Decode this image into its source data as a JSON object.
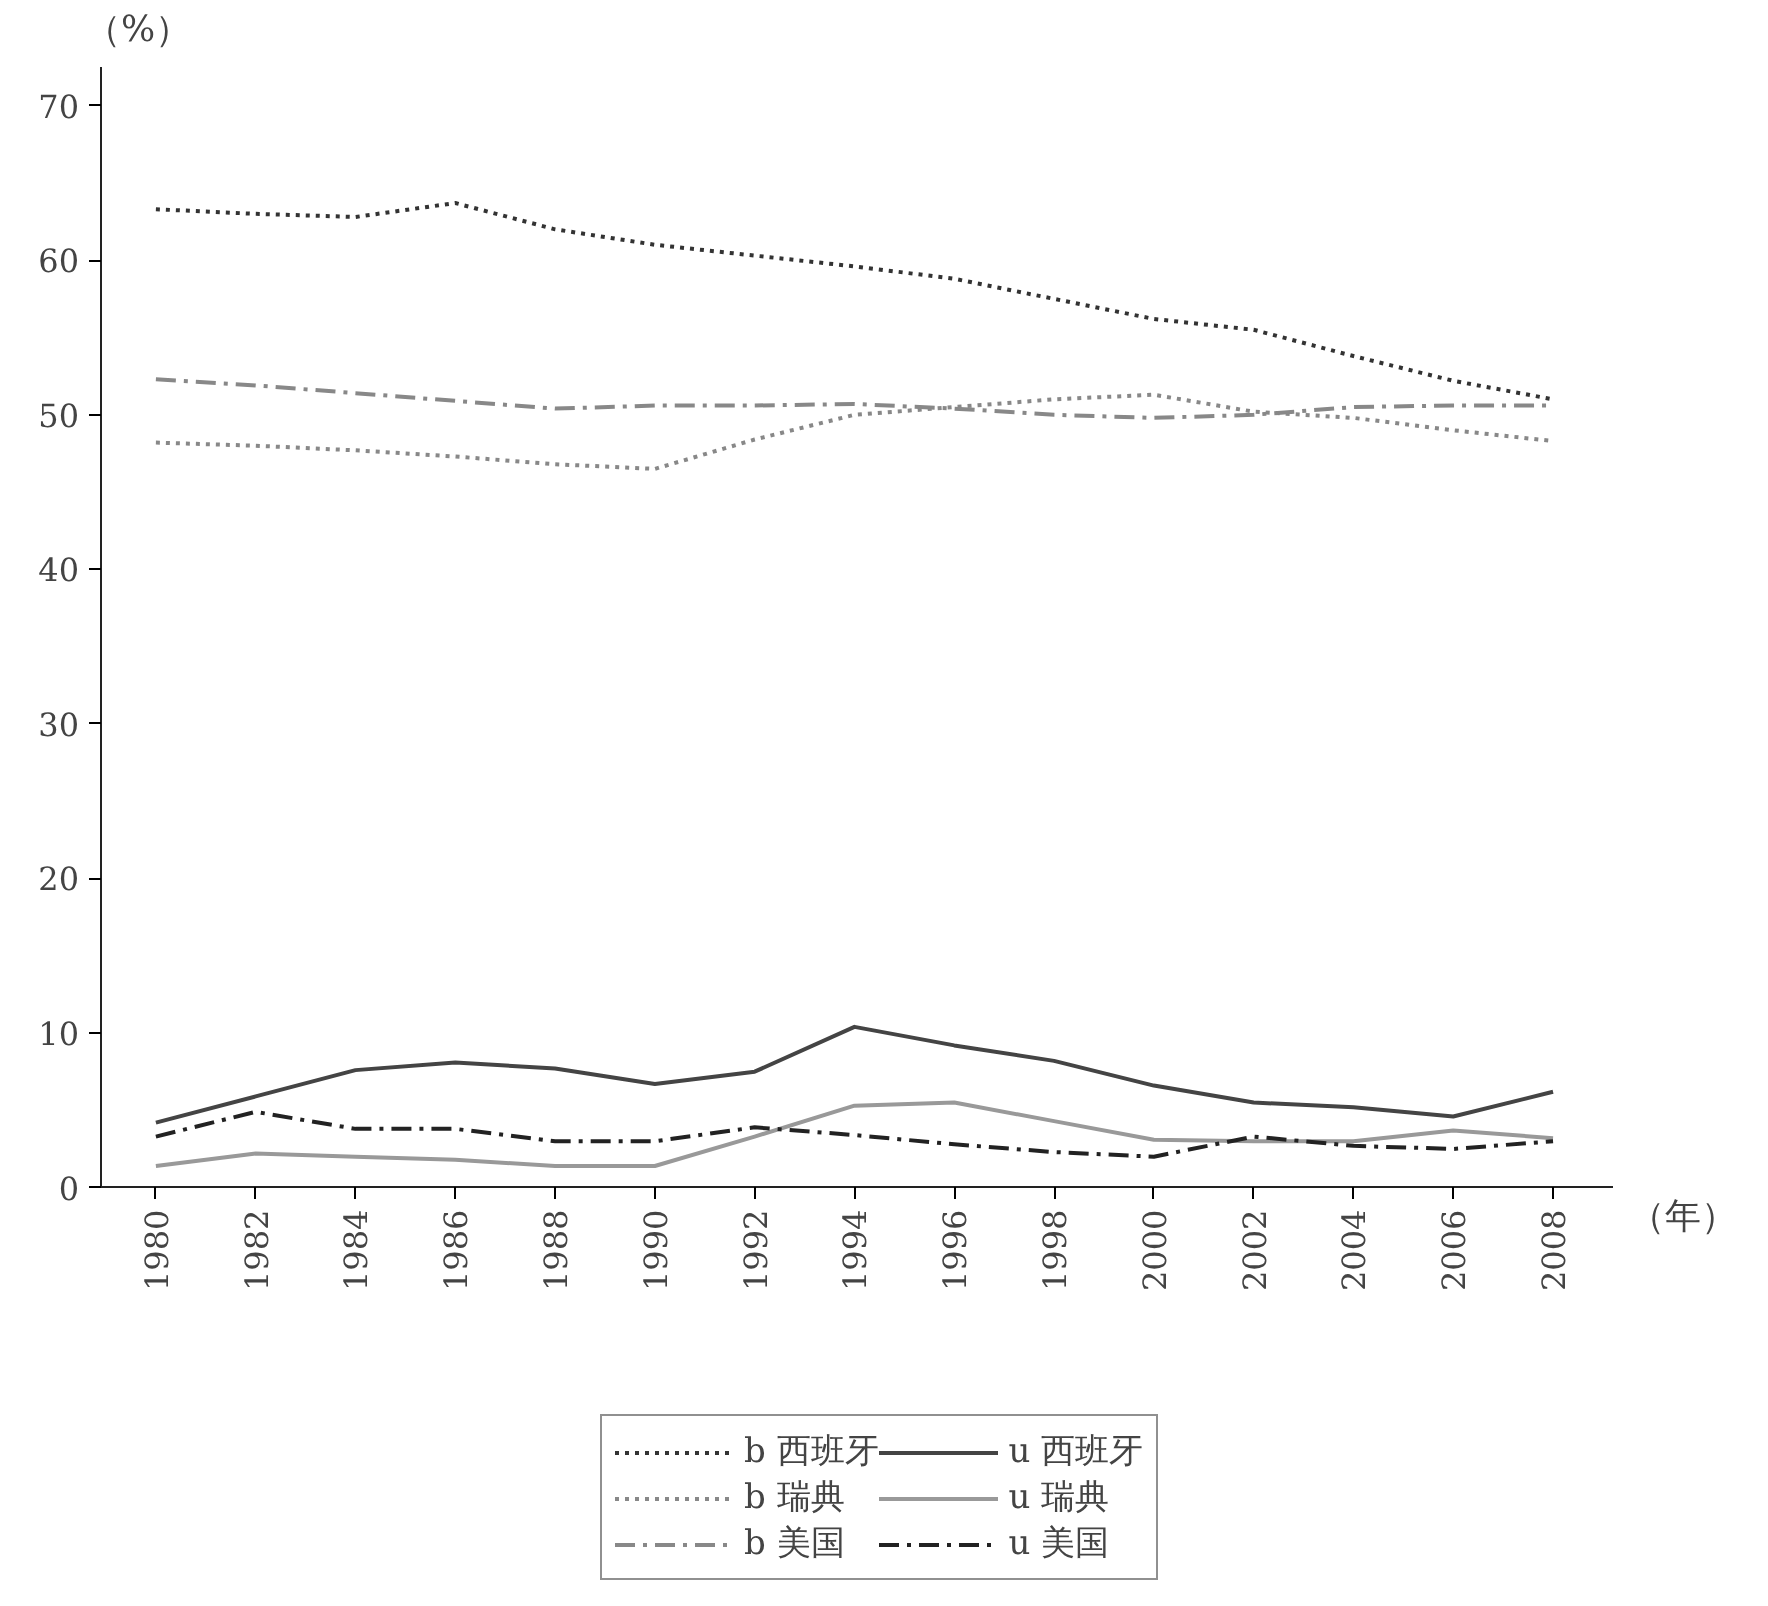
{
  "chart_data": {
    "type": "line",
    "xlabel": "（年）",
    "ylabel": "（%）",
    "x": [
      1980,
      1982,
      1984,
      1986,
      1988,
      1990,
      1992,
      1994,
      1996,
      1998,
      2000,
      2002,
      2004,
      2006,
      2008
    ],
    "xlim": [
      1978.9,
      2009.2
    ],
    "xticks": [
      1980,
      1982,
      1984,
      1986,
      1988,
      1990,
      1992,
      1994,
      1996,
      1998,
      2000,
      2002,
      2004,
      2006,
      2008
    ],
    "ylim": [
      0,
      72.5
    ],
    "yticks": [
      0,
      10,
      20,
      30,
      40,
      50,
      60,
      70
    ],
    "grid": false,
    "legend": "bottom",
    "marker": "none",
    "series": [
      {
        "name": "b 西班牙",
        "color": "#333333",
        "line_style": "dotted",
        "values": [
          63.3,
          63.0,
          62.8,
          63.7,
          62.0,
          61.0,
          60.3,
          59.6,
          58.8,
          57.5,
          56.2,
          55.5,
          53.8,
          52.2,
          51.0
        ]
      },
      {
        "name": "b 瑞典",
        "color": "#888888",
        "line_style": "dotted",
        "values": [
          48.2,
          48.0,
          47.7,
          47.3,
          46.8,
          46.5,
          48.4,
          50.0,
          50.5,
          51.0,
          51.3,
          50.2,
          49.8,
          49.0,
          48.3
        ]
      },
      {
        "name": "b 美国",
        "color": "#888888",
        "line_style": "dashdot",
        "values": [
          52.3,
          51.9,
          51.4,
          50.9,
          50.4,
          50.6,
          50.6,
          50.7,
          50.4,
          50.0,
          49.8,
          50.0,
          50.5,
          50.6,
          50.6
        ]
      },
      {
        "name": "u 西班牙",
        "color": "#444444",
        "line_style": "solid",
        "values": [
          4.2,
          5.9,
          7.6,
          8.1,
          7.7,
          6.7,
          7.5,
          10.4,
          9.2,
          8.2,
          6.6,
          5.5,
          5.2,
          4.6,
          6.2
        ]
      },
      {
        "name": "u 瑞典",
        "color": "#999999",
        "line_style": "solid",
        "values": [
          1.4,
          2.2,
          2.0,
          1.8,
          1.4,
          1.4,
          3.3,
          5.3,
          5.5,
          4.3,
          3.1,
          3.0,
          3.0,
          3.7,
          3.2
        ]
      },
      {
        "name": "u 美国",
        "color": "#222222",
        "line_style": "dashdot",
        "values": [
          3.3,
          4.9,
          3.8,
          3.8,
          3.0,
          3.0,
          3.9,
          3.4,
          2.8,
          2.3,
          2.0,
          3.3,
          2.7,
          2.5,
          3.0
        ]
      }
    ]
  }
}
